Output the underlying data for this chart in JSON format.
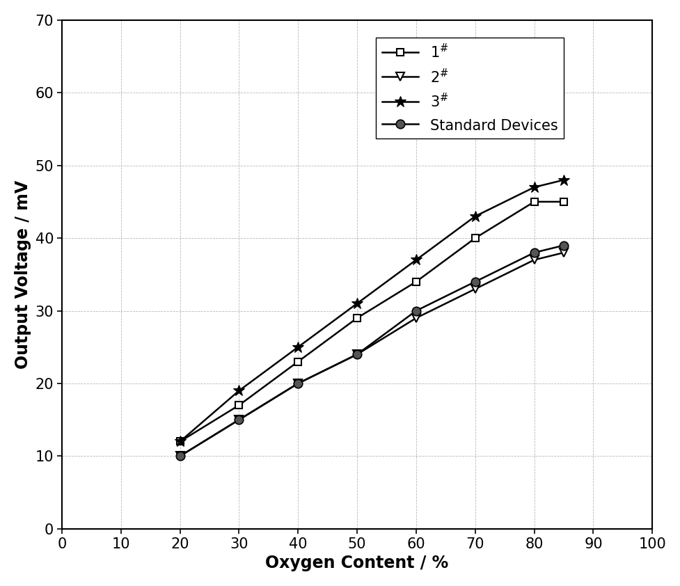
{
  "x": [
    20,
    30,
    40,
    50,
    60,
    70,
    80,
    85
  ],
  "series_1": [
    12,
    17,
    23,
    29,
    34,
    40,
    45,
    45
  ],
  "series_2": [
    10,
    15,
    20,
    24,
    29,
    33,
    37,
    38
  ],
  "series_3": [
    12,
    19,
    25,
    31,
    37,
    43,
    47,
    48
  ],
  "series_std": [
    10,
    15,
    20,
    24,
    30,
    34,
    38,
    39
  ],
  "xlabel": "Oxygen Content / %",
  "ylabel": "Output Voltage / mV",
  "xlim": [
    0,
    100
  ],
  "ylim": [
    0,
    70
  ],
  "xticks": [
    0,
    10,
    20,
    30,
    40,
    50,
    60,
    70,
    80,
    90,
    100
  ],
  "yticks": [
    0,
    10,
    20,
    30,
    40,
    50,
    60,
    70
  ],
  "legend_labels": [
    "$1^{\\#}$",
    "$2^{\\#}$",
    "$3^{\\#}$",
    "Standard Devices"
  ],
  "label_fontsize": 17,
  "tick_fontsize": 15,
  "legend_fontsize": 15,
  "line_color": "#000000",
  "background_color": "#ffffff",
  "grid_color": "#b0b0b0"
}
